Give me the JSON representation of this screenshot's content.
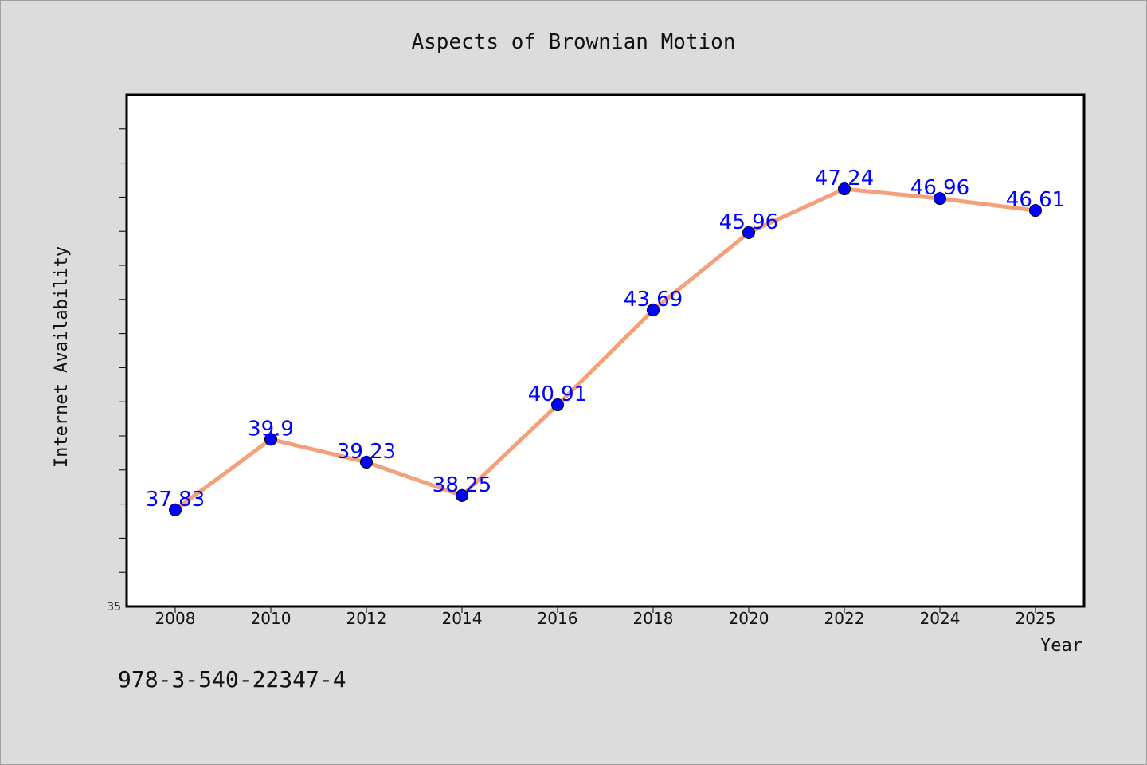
{
  "chart_data": {
    "type": "line",
    "title": "Aspects of Brownian Motion",
    "xlabel": "Year",
    "ylabel": "Internet Availability",
    "categories": [
      "2008",
      "2010",
      "2012",
      "2014",
      "2016",
      "2018",
      "2020",
      "2022",
      "2024",
      "2025"
    ],
    "series": [
      {
        "values": [
          37.83,
          39.9,
          39.23,
          38.25,
          40.91,
          43.69,
          45.96,
          47.24,
          46.96,
          46.61
        ],
        "data_labels": [
          "37.83",
          "39.9",
          "39.23",
          "38.25",
          "40.91",
          "43.69",
          "45.96",
          "47.24",
          "46.96",
          "46.61"
        ],
        "line_color": "#f4a07a",
        "marker_color": "#0000ff",
        "label_color": "#0000ff"
      }
    ],
    "ylim": [
      35,
      50
    ],
    "y_tick_labels": [
      "35"
    ],
    "grid": false,
    "legend": "none"
  },
  "caption": "978-3-540-22347-4",
  "colors": {
    "background": "#dcdcdc",
    "plot_background": "#ffffff"
  }
}
